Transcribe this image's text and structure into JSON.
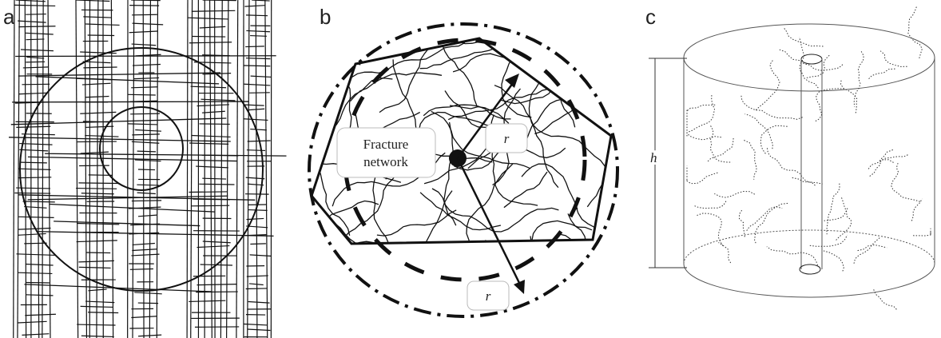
{
  "panels": [
    {
      "label": "a"
    },
    {
      "label": "b",
      "box_lines": [
        "Fracture",
        "network"
      ],
      "radius_labels": [
        "r",
        "r"
      ]
    },
    {
      "label": "c",
      "height_label": "h"
    }
  ]
}
